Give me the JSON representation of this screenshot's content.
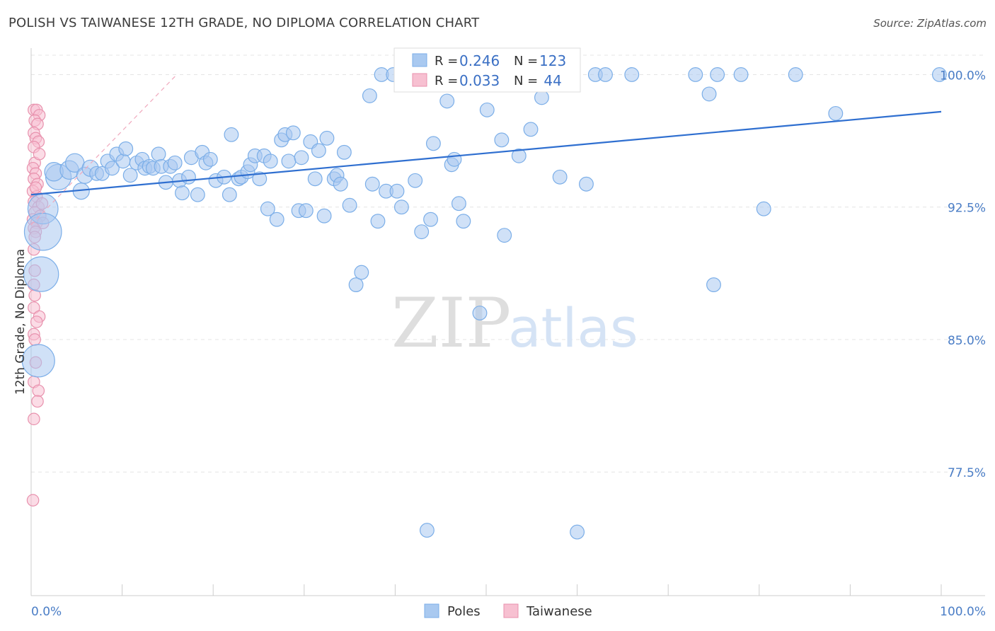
{
  "title": "POLISH VS TAIWANESE 12TH GRADE, NO DIPLOMA CORRELATION CHART",
  "source": "Source: ZipAtlas.com",
  "watermark": {
    "zip": "ZIP",
    "atlas": "atlas"
  },
  "chart_data": {
    "type": "scatter",
    "ylabel": "12th Grade, No Diploma",
    "xlim": [
      0,
      100
    ],
    "ylim": [
      70.5,
      101.5
    ],
    "x_tick_labels": [
      {
        "value": 0,
        "label": "0.0%"
      },
      {
        "value": 100,
        "label": "100.0%"
      }
    ],
    "y_ticks": [
      {
        "value": 100,
        "label": "100.0%"
      },
      {
        "value": 92.5,
        "label": "92.5%"
      },
      {
        "value": 85,
        "label": "85.0%"
      },
      {
        "value": 77.5,
        "label": "77.5%"
      }
    ],
    "grid": true,
    "legend_top": {
      "rows": [
        {
          "series": "Poles",
          "r_label": "R = ",
          "r_value": "0.246",
          "n_label": "N = ",
          "n_value": "123"
        },
        {
          "series": "Taiwanese",
          "r_label": "R = ",
          "r_value": "0.033",
          "n_label": "N = ",
          "n_value": " 44"
        }
      ]
    },
    "series": [
      {
        "name": "Poles",
        "color": "#7baee8",
        "fill": "#a9c9f0",
        "trend": {
          "x": [
            0,
            100
          ],
          "y": [
            93.2,
            97.9
          ],
          "color": "#2f6fd0"
        },
        "points": [
          [
            1.3,
            92.4,
            26
          ],
          [
            1.3,
            91.1,
            32
          ],
          [
            1.1,
            88.7,
            30
          ],
          [
            0.8,
            83.8,
            28
          ],
          [
            3.0,
            94.2,
            22
          ],
          [
            2.5,
            94.5,
            16
          ],
          [
            4.2,
            94.6,
            16
          ],
          [
            4.8,
            95.0,
            16
          ],
          [
            5.5,
            93.4,
            14
          ],
          [
            5.9,
            94.3,
            14
          ],
          [
            6.5,
            94.7,
            14
          ],
          [
            7.2,
            94.4,
            12
          ],
          [
            7.8,
            94.4,
            12
          ],
          [
            8.4,
            95.1,
            12
          ],
          [
            8.9,
            94.7,
            12
          ],
          [
            9.4,
            95.5,
            12
          ],
          [
            10.1,
            95.1,
            12
          ],
          [
            10.4,
            95.8,
            12
          ],
          [
            10.9,
            94.3,
            12
          ],
          [
            11.6,
            95.0,
            12
          ],
          [
            12.2,
            95.2,
            12
          ],
          [
            12.5,
            94.7,
            12
          ],
          [
            13.0,
            94.8,
            12
          ],
          [
            13.4,
            94.7,
            12
          ],
          [
            14.0,
            95.5,
            12
          ],
          [
            14.3,
            94.8,
            12
          ],
          [
            14.8,
            93.9,
            12
          ],
          [
            15.3,
            94.8,
            12
          ],
          [
            15.8,
            95.0,
            12
          ],
          [
            16.3,
            94.0,
            12
          ],
          [
            16.6,
            93.3,
            12
          ],
          [
            17.3,
            94.2,
            12
          ],
          [
            17.6,
            95.3,
            12
          ],
          [
            18.3,
            93.2,
            12
          ],
          [
            18.8,
            95.6,
            12
          ],
          [
            19.2,
            95.0,
            12
          ],
          [
            19.7,
            95.2,
            12
          ],
          [
            20.3,
            94.0,
            12
          ],
          [
            21.2,
            94.2,
            12
          ],
          [
            21.8,
            93.2,
            12
          ],
          [
            22.0,
            96.6,
            12
          ],
          [
            22.8,
            94.1,
            12
          ],
          [
            23.1,
            94.2,
            12
          ],
          [
            23.8,
            94.5,
            12
          ],
          [
            24.1,
            94.9,
            12
          ],
          [
            24.6,
            95.4,
            12
          ],
          [
            25.1,
            94.1,
            12
          ],
          [
            25.6,
            95.4,
            12
          ],
          [
            26.0,
            92.4,
            12
          ],
          [
            26.3,
            95.1,
            12
          ],
          [
            27.0,
            91.8,
            12
          ],
          [
            27.5,
            96.3,
            12
          ],
          [
            27.9,
            96.6,
            12
          ],
          [
            28.3,
            95.1,
            12
          ],
          [
            28.8,
            96.7,
            12
          ],
          [
            29.4,
            92.3,
            12
          ],
          [
            29.7,
            95.3,
            12
          ],
          [
            30.2,
            92.3,
            12
          ],
          [
            30.7,
            96.2,
            12
          ],
          [
            31.2,
            94.1,
            12
          ],
          [
            31.6,
            95.7,
            12
          ],
          [
            32.2,
            92.0,
            12
          ],
          [
            32.5,
            96.4,
            12
          ],
          [
            33.3,
            94.1,
            12
          ],
          [
            33.6,
            94.3,
            12
          ],
          [
            34.0,
            93.8,
            12
          ],
          [
            34.4,
            95.6,
            12
          ],
          [
            35.0,
            92.6,
            12
          ],
          [
            35.7,
            88.1,
            12
          ],
          [
            36.3,
            88.8,
            12
          ],
          [
            37.2,
            98.8,
            12
          ],
          [
            37.5,
            93.8,
            12
          ],
          [
            38.1,
            91.7,
            12
          ],
          [
            38.5,
            100.0,
            12
          ],
          [
            39.0,
            93.4,
            12
          ],
          [
            39.8,
            100.0,
            12
          ],
          [
            40.2,
            93.4,
            12
          ],
          [
            40.7,
            92.5,
            12
          ],
          [
            41.5,
            100.0,
            12
          ],
          [
            42.2,
            94.0,
            12
          ],
          [
            42.9,
            91.1,
            12
          ],
          [
            43.5,
            74.2,
            12
          ],
          [
            43.9,
            91.8,
            12
          ],
          [
            44.2,
            96.1,
            12
          ],
          [
            45.2,
            100.0,
            12
          ],
          [
            45.7,
            98.5,
            12
          ],
          [
            46.2,
            94.9,
            12
          ],
          [
            46.5,
            95.2,
            12
          ],
          [
            47.0,
            92.7,
            12
          ],
          [
            47.5,
            91.7,
            12
          ],
          [
            47.9,
            100.0,
            12
          ],
          [
            48.6,
            100.0,
            12
          ],
          [
            49.3,
            86.5,
            12
          ],
          [
            50.1,
            98.0,
            12
          ],
          [
            50.6,
            100.0,
            12
          ],
          [
            51.0,
            100.0,
            12
          ],
          [
            51.7,
            96.3,
            12
          ],
          [
            52.0,
            90.9,
            12
          ],
          [
            53.2,
            100.0,
            12
          ],
          [
            53.6,
            95.4,
            12
          ],
          [
            54.2,
            100.0,
            12
          ],
          [
            54.9,
            96.9,
            12
          ],
          [
            55.5,
            100.0,
            12
          ],
          [
            56.1,
            98.7,
            12
          ],
          [
            58.1,
            94.2,
            12
          ],
          [
            60.0,
            74.1,
            12
          ],
          [
            61.0,
            93.8,
            12
          ],
          [
            62.0,
            100.0,
            12
          ],
          [
            63.1,
            100.0,
            12
          ],
          [
            66.0,
            100.0,
            12
          ],
          [
            73.0,
            100.0,
            12
          ],
          [
            74.5,
            98.9,
            12
          ],
          [
            75.0,
            88.1,
            12
          ],
          [
            75.4,
            100.0,
            12
          ],
          [
            78.0,
            100.0,
            12
          ],
          [
            80.5,
            92.4,
            12
          ],
          [
            84.0,
            100.0,
            12
          ],
          [
            88.4,
            97.8,
            12
          ],
          [
            99.8,
            100.0,
            12
          ]
        ]
      },
      {
        "name": "Taiwanese",
        "color": "#e891ad",
        "fill": "#f7c0d1",
        "trend": {
          "x": [
            0,
            16
          ],
          "y": [
            91.5,
            100.0
          ],
          "color": "#f0a9bd",
          "dashed": true
        },
        "points": [
          [
            0.3,
            98.0,
            10
          ],
          [
            0.6,
            98.0,
            10
          ],
          [
            0.9,
            97.7,
            10
          ],
          [
            0.4,
            97.4,
            10
          ],
          [
            0.7,
            97.2,
            10
          ],
          [
            0.3,
            96.7,
            10
          ],
          [
            0.5,
            96.4,
            10
          ],
          [
            0.8,
            96.2,
            10
          ],
          [
            0.3,
            95.9,
            10
          ],
          [
            0.4,
            95.0,
            10
          ],
          [
            0.2,
            94.7,
            10
          ],
          [
            0.5,
            94.4,
            10
          ],
          [
            0.3,
            94.1,
            10
          ],
          [
            0.7,
            93.8,
            10
          ],
          [
            0.2,
            93.4,
            10
          ],
          [
            0.6,
            93.1,
            10
          ],
          [
            0.3,
            92.8,
            10
          ],
          [
            0.8,
            92.5,
            10
          ],
          [
            0.4,
            92.2,
            10
          ],
          [
            1.0,
            92.0,
            10
          ],
          [
            0.2,
            91.8,
            10
          ],
          [
            0.6,
            91.6,
            10
          ],
          [
            1.3,
            91.6,
            10
          ],
          [
            0.3,
            91.3,
            10
          ],
          [
            0.5,
            91.1,
            10
          ],
          [
            0.3,
            90.1,
            10
          ],
          [
            0.4,
            88.9,
            10
          ],
          [
            0.3,
            88.1,
            10
          ],
          [
            0.4,
            87.5,
            10
          ],
          [
            0.3,
            86.8,
            10
          ],
          [
            0.9,
            86.3,
            10
          ],
          [
            0.3,
            85.3,
            10
          ],
          [
            0.4,
            85.0,
            10
          ],
          [
            0.3,
            82.6,
            10
          ],
          [
            0.8,
            82.1,
            10
          ],
          [
            0.7,
            81.5,
            10
          ],
          [
            0.3,
            80.5,
            10
          ],
          [
            0.2,
            75.9,
            10
          ],
          [
            0.5,
            93.6,
            10
          ],
          [
            0.9,
            95.5,
            10
          ],
          [
            1.2,
            92.7,
            10
          ],
          [
            0.4,
            90.8,
            10
          ],
          [
            0.6,
            86.0,
            10
          ],
          [
            0.5,
            83.7,
            10
          ]
        ]
      }
    ]
  },
  "legend_bottom": [
    {
      "name": "Poles",
      "fill": "#a9c9f0",
      "stroke": "#7baee8"
    },
    {
      "name": "Taiwanese",
      "fill": "#f7c0d1",
      "stroke": "#e891ad"
    }
  ]
}
